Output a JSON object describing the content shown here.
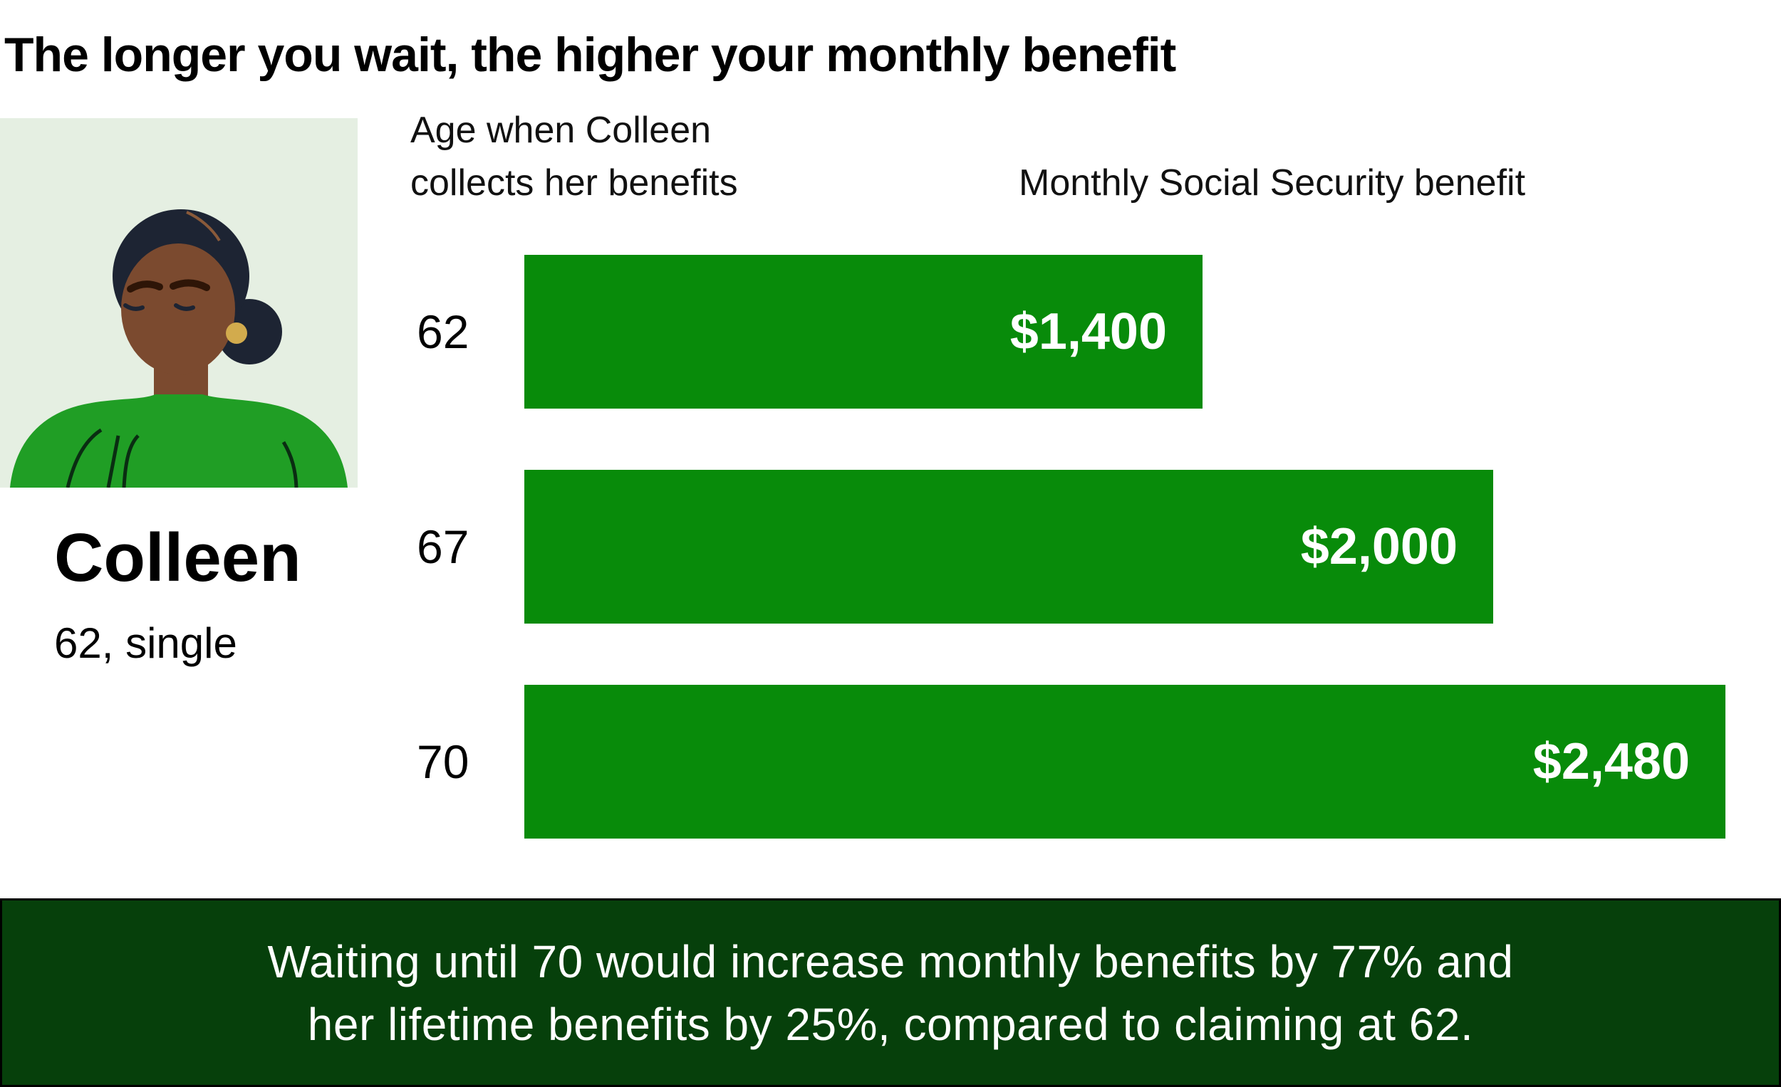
{
  "title": "The longer you wait, the higher your monthly benefit",
  "person": {
    "name": "Colleen",
    "details": "62, single"
  },
  "chart_data": {
    "type": "bar",
    "orientation": "horizontal",
    "title": "The longer you wait, the higher your monthly benefit",
    "category_axis_label": "Age when Colleen\ncollects her benefits",
    "value_axis_label": "Monthly Social Security benefit",
    "categories": [
      "62",
      "67",
      "70"
    ],
    "values": [
      1400,
      2000,
      2480
    ],
    "value_labels": [
      "$1,400",
      "$2,000",
      "$2,480"
    ],
    "xlim": [
      0,
      2480
    ],
    "grid": false,
    "legend": false,
    "bar_color": "#088b0a"
  },
  "footer": {
    "line1": "Waiting until 70 would increase monthly benefits by 77% and",
    "line2": "her lifetime benefits by 25%, compared to claiming at 62."
  },
  "illustration": {
    "description": "colleen-portrait-illustration"
  },
  "colors": {
    "bar-green": "#088b0a",
    "footer-green": "#06400b",
    "portrait-bg": "#e5efe2",
    "skin": "#7b4a2f",
    "hair": "#1d2433",
    "shirt": "#209e25",
    "earring": "#d2ab4d",
    "value-text": "#ffffff"
  }
}
